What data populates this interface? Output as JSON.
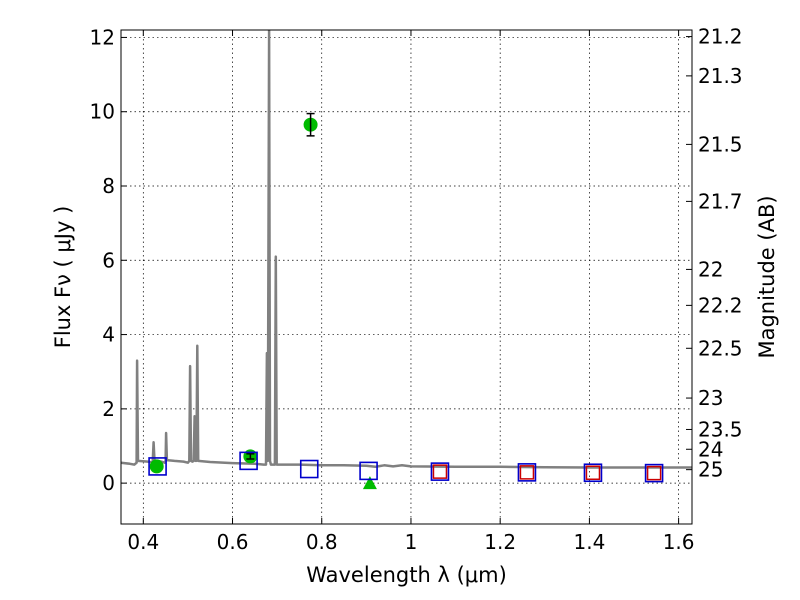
{
  "chart_data": {
    "type": "scatter",
    "xlabel": "Wavelength  λ (μm)",
    "ylabel": "Flux  Fν  ( μJy )",
    "y2label": "Magnitude (AB)",
    "xlim": [
      0.35,
      1.63
    ],
    "ylim": [
      -1.1,
      12.2
    ],
    "grid": true,
    "x_ticks": [
      0.4,
      0.6,
      0.8,
      1.0,
      1.2,
      1.4,
      1.6
    ],
    "x_tick_labels": [
      "0.4",
      "0.6",
      "0.8",
      "1",
      "1.2",
      "1.4",
      "1.6"
    ],
    "y_ticks": [
      0,
      2,
      4,
      6,
      8,
      10,
      12
    ],
    "y_tick_labels": [
      "0",
      "2",
      "4",
      "6",
      "8",
      "10",
      "12"
    ],
    "mag_ticks": [
      "21.2",
      "21.3",
      "21.5",
      "21.7",
      "22",
      "22.2",
      "22.5",
      "23",
      "23.5",
      "24",
      "25"
    ],
    "colors": {
      "model": "#808080",
      "observed": "#00bb00",
      "model_photometry": "#0000cc",
      "model_photometry_inner": "#cc0000",
      "errorbar": "#000000"
    },
    "series": [
      {
        "kind": "line",
        "points": [
          [
            0.35,
            0.55
          ],
          [
            0.37,
            0.52
          ],
          [
            0.38,
            0.5
          ],
          [
            0.385,
            0.55
          ],
          [
            0.386,
            3.3
          ],
          [
            0.388,
            0.6
          ],
          [
            0.41,
            0.58
          ],
          [
            0.42,
            0.56
          ],
          [
            0.421,
            0.58
          ],
          [
            0.423,
            1.1
          ],
          [
            0.425,
            0.6
          ],
          [
            0.44,
            0.58
          ],
          [
            0.448,
            0.55
          ],
          [
            0.45,
            0.6
          ],
          [
            0.451,
            1.35
          ],
          [
            0.453,
            0.62
          ],
          [
            0.47,
            0.6
          ],
          [
            0.49,
            0.58
          ],
          [
            0.5,
            0.55
          ],
          [
            0.503,
            0.6
          ],
          [
            0.505,
            3.15
          ],
          [
            0.507,
            0.6
          ],
          [
            0.51,
            0.58
          ],
          [
            0.513,
            0.6
          ],
          [
            0.515,
            1.8
          ],
          [
            0.517,
            0.6
          ],
          [
            0.519,
            0.6
          ],
          [
            0.521,
            3.7
          ],
          [
            0.523,
            0.6
          ],
          [
            0.55,
            0.57
          ],
          [
            0.6,
            0.54
          ],
          [
            0.65,
            0.52
          ],
          [
            0.67,
            0.5
          ],
          [
            0.675,
            0.5
          ],
          [
            0.677,
            3.5
          ],
          [
            0.679,
            0.6
          ],
          [
            0.682,
            12.2
          ],
          [
            0.684,
            0.6
          ],
          [
            0.686,
            0.5
          ],
          [
            0.695,
            0.5
          ],
          [
            0.697,
            6.1
          ],
          [
            0.699,
            0.5
          ],
          [
            0.75,
            0.5
          ],
          [
            0.8,
            0.48
          ],
          [
            0.85,
            0.48
          ],
          [
            0.9,
            0.47
          ],
          [
            0.92,
            0.44
          ],
          [
            0.94,
            0.48
          ],
          [
            0.96,
            0.45
          ],
          [
            0.98,
            0.48
          ],
          [
            1.0,
            0.45
          ],
          [
            1.1,
            0.44
          ],
          [
            1.2,
            0.44
          ],
          [
            1.3,
            0.43
          ],
          [
            1.4,
            0.42
          ],
          [
            1.5,
            0.42
          ],
          [
            1.6,
            0.42
          ],
          [
            1.63,
            0.42
          ]
        ]
      },
      {
        "kind": "observed-circles",
        "points": [
          {
            "x": 0.43,
            "y": 0.45,
            "err": 0.0
          },
          {
            "x": 0.64,
            "y": 0.72,
            "err": 0.07
          },
          {
            "x": 0.775,
            "y": 9.65,
            "err": 0.3
          }
        ]
      },
      {
        "kind": "observed-upper-limit",
        "points": [
          {
            "x": 0.908,
            "y": 0.0
          }
        ]
      },
      {
        "kind": "model-squares",
        "points": [
          {
            "x": 0.432,
            "y": 0.45
          },
          {
            "x": 0.636,
            "y": 0.6
          },
          {
            "x": 0.772,
            "y": 0.38
          },
          {
            "x": 0.905,
            "y": 0.33
          },
          {
            "x": 1.065,
            "y": 0.31
          },
          {
            "x": 1.26,
            "y": 0.29
          },
          {
            "x": 1.408,
            "y": 0.28
          },
          {
            "x": 1.545,
            "y": 0.27
          }
        ],
        "inner_red_from_index": 4
      }
    ]
  }
}
